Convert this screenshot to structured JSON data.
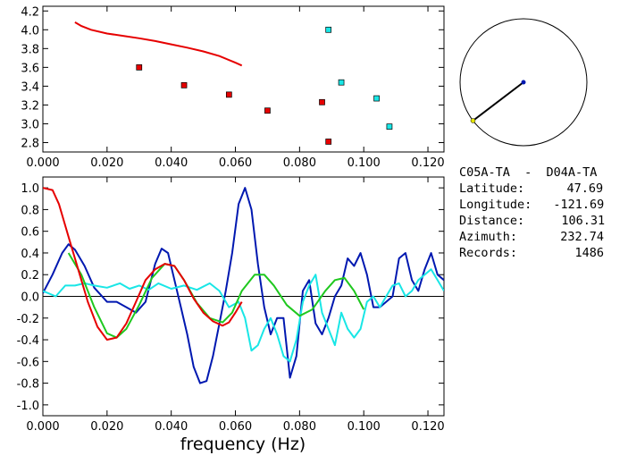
{
  "info": {
    "title": "C05A-TA  -  D04A-TA",
    "rows": [
      {
        "label": "Latitude:",
        "value": "47.69"
      },
      {
        "label": "Longitude:",
        "value": "-121.69"
      },
      {
        "label": "Distance:",
        "value": "106.31"
      },
      {
        "label": "Azimuth:",
        "value": "232.74"
      },
      {
        "label": "Records:",
        "value": "1486"
      }
    ]
  },
  "azimuth_deg": 232.74,
  "colors": {
    "red": "#e60000",
    "blue": "#0018b0",
    "green": "#1fc81f",
    "cyan": "#19e6e6",
    "zero_line": "#000000",
    "frame": "#000000"
  },
  "chart_data": [
    {
      "type": "scatter",
      "xlim": [
        0,
        0.125
      ],
      "ylim": [
        2.7,
        4.25
      ],
      "xticks": [
        "0.000",
        "0.020",
        "0.040",
        "0.060",
        "0.080",
        "0.100",
        "0.120"
      ],
      "yticks": [
        "2.8",
        "3.0",
        "3.2",
        "3.4",
        "3.6",
        "3.8",
        "4.0",
        "4.2"
      ],
      "curve": {
        "color": "red",
        "x": [
          0.01,
          0.012,
          0.015,
          0.02,
          0.025,
          0.03,
          0.035,
          0.04,
          0.045,
          0.05,
          0.055,
          0.06,
          0.062
        ],
        "y": [
          4.08,
          4.04,
          4.0,
          3.96,
          3.935,
          3.91,
          3.88,
          3.845,
          3.81,
          3.77,
          3.72,
          3.65,
          3.62
        ]
      },
      "points": [
        {
          "x": 0.03,
          "y": 3.6,
          "color": "red"
        },
        {
          "x": 0.044,
          "y": 3.41,
          "color": "red"
        },
        {
          "x": 0.058,
          "y": 3.31,
          "color": "red"
        },
        {
          "x": 0.07,
          "y": 3.14,
          "color": "red"
        },
        {
          "x": 0.087,
          "y": 3.23,
          "color": "red"
        },
        {
          "x": 0.089,
          "y": 2.81,
          "color": "red"
        },
        {
          "x": 0.089,
          "y": 4.0,
          "color": "cyan"
        },
        {
          "x": 0.093,
          "y": 3.44,
          "color": "cyan"
        },
        {
          "x": 0.104,
          "y": 3.27,
          "color": "cyan"
        },
        {
          "x": 0.108,
          "y": 2.97,
          "color": "cyan"
        }
      ]
    },
    {
      "type": "line",
      "xlabel": "frequency (Hz)",
      "xlim": [
        0,
        0.125
      ],
      "ylim": [
        -1.1,
        1.1
      ],
      "xticks": [
        "0.000",
        "0.020",
        "0.040",
        "0.060",
        "0.080",
        "0.100",
        "0.120"
      ],
      "yticks": [
        "1.0",
        "0.8",
        "0.6",
        "0.4",
        "0.2",
        "0.0",
        "-0.2",
        "-0.4",
        "-0.6",
        "-0.8",
        "-1.0"
      ],
      "series": [
        {
          "color": "blue",
          "x": [
            0.0,
            0.003,
            0.006,
            0.008,
            0.01,
            0.013,
            0.016,
            0.02,
            0.023,
            0.026,
            0.029,
            0.032,
            0.035,
            0.037,
            0.039,
            0.041,
            0.043,
            0.045,
            0.047,
            0.049,
            0.051,
            0.053,
            0.055,
            0.057,
            0.059,
            0.061,
            0.063,
            0.065,
            0.067,
            0.069,
            0.071,
            0.073,
            0.075,
            0.077,
            0.079,
            0.081,
            0.083,
            0.085,
            0.087,
            0.089,
            0.091,
            0.093,
            0.095,
            0.097,
            0.099,
            0.101,
            0.103,
            0.105,
            0.107,
            0.109,
            0.111,
            0.113,
            0.115,
            0.117,
            0.119,
            0.121,
            0.123,
            0.125
          ],
          "y": [
            0.03,
            0.2,
            0.4,
            0.48,
            0.43,
            0.28,
            0.08,
            -0.05,
            -0.05,
            -0.1,
            -0.15,
            -0.05,
            0.3,
            0.44,
            0.4,
            0.15,
            -0.1,
            -0.35,
            -0.65,
            -0.8,
            -0.78,
            -0.55,
            -0.25,
            0.05,
            0.4,
            0.85,
            1.0,
            0.8,
            0.3,
            -0.1,
            -0.35,
            -0.2,
            -0.2,
            -0.75,
            -0.55,
            0.05,
            0.15,
            -0.25,
            -0.35,
            -0.2,
            0.0,
            0.1,
            0.35,
            0.28,
            0.4,
            0.2,
            -0.1,
            -0.1,
            -0.05,
            0.0,
            0.35,
            0.4,
            0.15,
            0.05,
            0.25,
            0.4,
            0.2,
            0.15
          ]
        },
        {
          "color": "cyan",
          "x": [
            0.0,
            0.004,
            0.007,
            0.01,
            0.013,
            0.016,
            0.02,
            0.024,
            0.027,
            0.03,
            0.033,
            0.036,
            0.04,
            0.044,
            0.048,
            0.052,
            0.055,
            0.058,
            0.061,
            0.063,
            0.065,
            0.067,
            0.069,
            0.071,
            0.073,
            0.075,
            0.077,
            0.079,
            0.081,
            0.083,
            0.085,
            0.087,
            0.089,
            0.091,
            0.093,
            0.095,
            0.097,
            0.099,
            0.101,
            0.103,
            0.105,
            0.107,
            0.109,
            0.111,
            0.113,
            0.115,
            0.117,
            0.119,
            0.121,
            0.123,
            0.125
          ],
          "y": [
            0.05,
            0.0,
            0.1,
            0.1,
            0.12,
            0.1,
            0.08,
            0.12,
            0.07,
            0.1,
            0.06,
            0.12,
            0.07,
            0.1,
            0.06,
            0.12,
            0.05,
            -0.1,
            -0.05,
            -0.2,
            -0.5,
            -0.45,
            -0.3,
            -0.2,
            -0.35,
            -0.55,
            -0.6,
            -0.4,
            -0.05,
            0.1,
            0.2,
            -0.15,
            -0.3,
            -0.45,
            -0.15,
            -0.3,
            -0.38,
            -0.3,
            -0.05,
            0.0,
            -0.1,
            0.0,
            0.1,
            0.12,
            0.0,
            0.05,
            0.15,
            0.2,
            0.25,
            0.15,
            0.05
          ]
        },
        {
          "color": "green",
          "x": [
            0.008,
            0.012,
            0.016,
            0.02,
            0.023,
            0.026,
            0.03,
            0.034,
            0.038,
            0.041,
            0.044,
            0.048,
            0.052,
            0.056,
            0.059,
            0.062,
            0.066,
            0.069,
            0.072,
            0.076,
            0.08,
            0.084,
            0.088,
            0.091,
            0.094,
            0.097,
            0.1
          ],
          "y": [
            0.4,
            0.2,
            -0.1,
            -0.34,
            -0.38,
            -0.3,
            -0.08,
            0.17,
            0.3,
            0.28,
            0.15,
            -0.06,
            -0.2,
            -0.24,
            -0.15,
            0.05,
            0.2,
            0.2,
            0.1,
            -0.08,
            -0.18,
            -0.12,
            0.05,
            0.15,
            0.17,
            0.05,
            -0.12
          ]
        },
        {
          "color": "red",
          "x": [
            0.0,
            0.003,
            0.005,
            0.008,
            0.011,
            0.014,
            0.017,
            0.02,
            0.023,
            0.026,
            0.029,
            0.032,
            0.035,
            0.038,
            0.041,
            0.044,
            0.047,
            0.05,
            0.053,
            0.056,
            0.058,
            0.06,
            0.062
          ],
          "y": [
            1.0,
            0.98,
            0.85,
            0.55,
            0.25,
            -0.05,
            -0.28,
            -0.4,
            -0.38,
            -0.25,
            -0.05,
            0.15,
            0.25,
            0.3,
            0.28,
            0.15,
            -0.02,
            -0.15,
            -0.23,
            -0.27,
            -0.24,
            -0.15,
            -0.05
          ]
        }
      ]
    }
  ]
}
